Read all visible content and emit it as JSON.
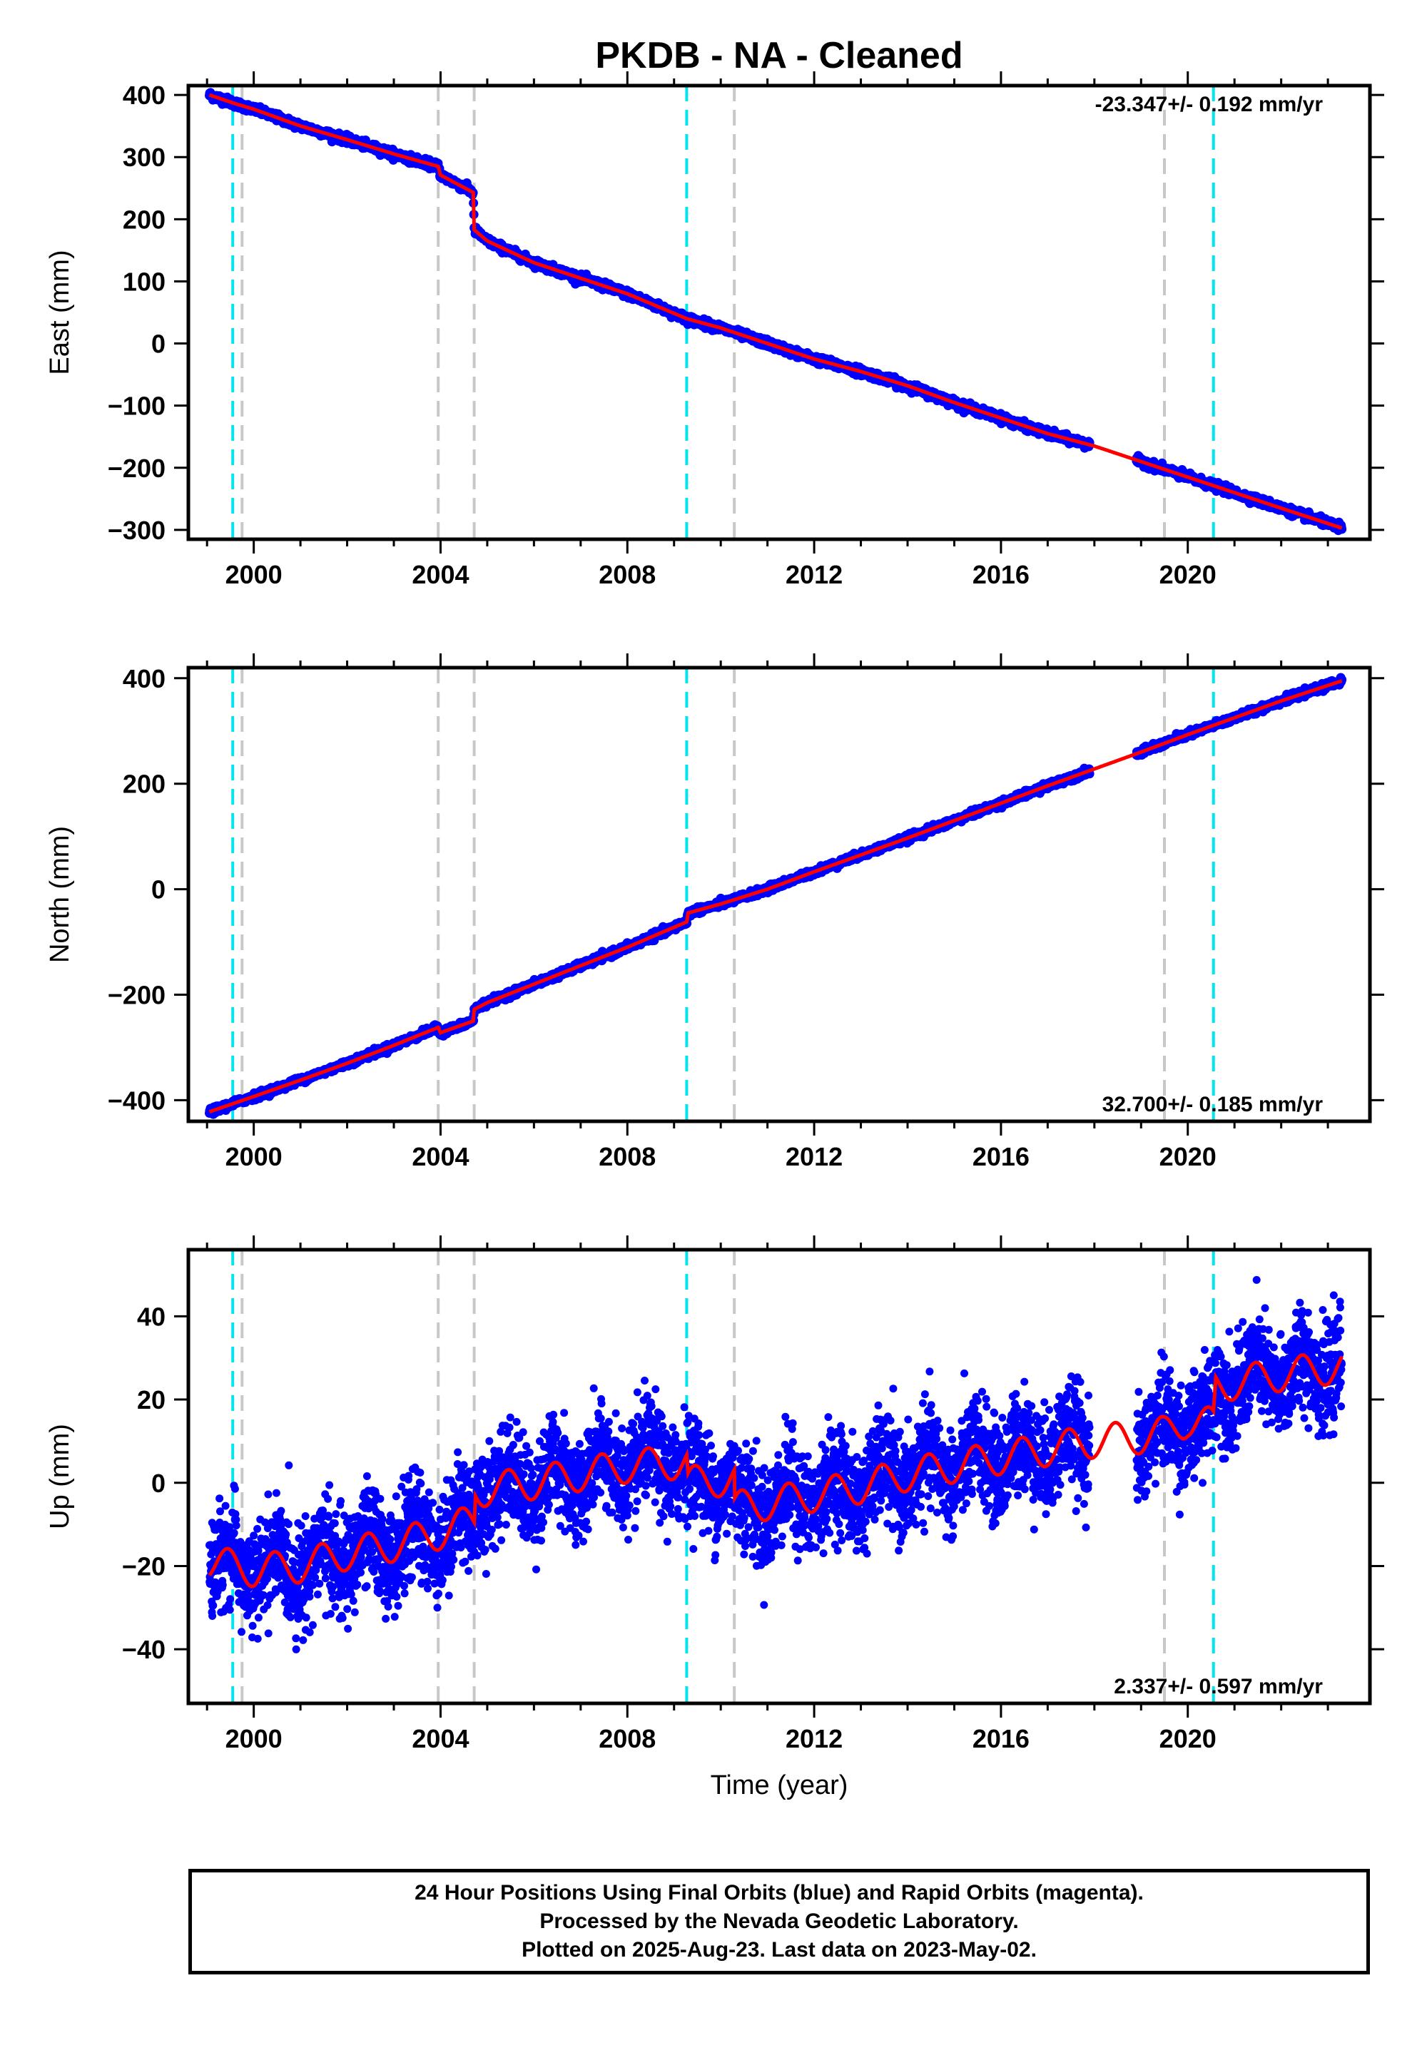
{
  "title": "PKDB  - NA - Cleaned",
  "xlabel": "Time (year)",
  "footer": {
    "line1": "24 Hour Positions Using Final Orbits (blue) and Rapid Orbits (magenta).",
    "line2": "Processed by the Nevada Geodetic Laboratory.",
    "line3": "Plotted on 2025-Aug-23. Last data on 2023-May-02."
  },
  "colors": {
    "data": "#0000ff",
    "model": "#ff0000",
    "equipment_change": "#c8c8c8",
    "earthquake": "#00e5ee"
  },
  "chart_data": [
    {
      "type": "scatter",
      "component": "east",
      "ylabel": "East (mm)",
      "rate_label": "-23.347+/- 0.192 mm/yr",
      "rate_position": "top-right",
      "xlim": [
        1998.6,
        2023.9
      ],
      "ylim": [
        -315,
        415
      ],
      "xticks": [
        2000,
        2004,
        2008,
        2012,
        2016,
        2020
      ],
      "yticks": [
        -300,
        -200,
        -100,
        0,
        100,
        200,
        300,
        400
      ],
      "trend_anchors": [
        [
          1999.05,
          400
        ],
        [
          1999.6,
          386
        ],
        [
          2000.0,
          377
        ],
        [
          2001.0,
          350
        ],
        [
          2002.0,
          328
        ],
        [
          2003.0,
          305
        ],
        [
          2003.95,
          285
        ],
        [
          2004.0,
          271
        ],
        [
          2004.7,
          243
        ],
        [
          2004.72,
          183
        ],
        [
          2005.0,
          165
        ],
        [
          2006.0,
          130
        ],
        [
          2007.0,
          105
        ],
        [
          2008.0,
          80
        ],
        [
          2009.27,
          40
        ],
        [
          2010.0,
          25
        ],
        [
          2011.0,
          0
        ],
        [
          2012.0,
          -25
        ],
        [
          2013.0,
          -45
        ],
        [
          2014.0,
          -68
        ],
        [
          2015.0,
          -95
        ],
        [
          2016.0,
          -120
        ],
        [
          2017.0,
          -145
        ],
        [
          2018.0,
          -165
        ],
        [
          2019.0,
          -190
        ],
        [
          2020.0,
          -215
        ],
        [
          2021.0,
          -240
        ],
        [
          2022.0,
          -265
        ],
        [
          2023.3,
          -297
        ]
      ],
      "noise_mm": 3,
      "gaps": [
        [
          2017.9,
          2018.9
        ]
      ]
    },
    {
      "type": "scatter",
      "component": "north",
      "ylabel": "North (mm)",
      "rate_label": "32.700+/- 0.185 mm/yr",
      "rate_position": "bottom-right",
      "xlim": [
        1998.6,
        2023.9
      ],
      "ylim": [
        -440,
        420
      ],
      "xticks": [
        2000,
        2004,
        2008,
        2012,
        2016,
        2020
      ],
      "yticks": [
        -400,
        -200,
        0,
        200,
        400
      ],
      "trend_anchors": [
        [
          1999.05,
          -422
        ],
        [
          2000.0,
          -393
        ],
        [
          2001.0,
          -362
        ],
        [
          2002.0,
          -330
        ],
        [
          2003.0,
          -296
        ],
        [
          2003.95,
          -262
        ],
        [
          2004.0,
          -272
        ],
        [
          2004.7,
          -250
        ],
        [
          2004.72,
          -228
        ],
        [
          2005.0,
          -215
        ],
        [
          2006.0,
          -180
        ],
        [
          2007.0,
          -145
        ],
        [
          2008.0,
          -110
        ],
        [
          2009.27,
          -62
        ],
        [
          2009.3,
          -45
        ],
        [
          2010.0,
          -28
        ],
        [
          2011.0,
          0
        ],
        [
          2012.0,
          33
        ],
        [
          2013.0,
          65
        ],
        [
          2014.0,
          97
        ],
        [
          2015.0,
          130
        ],
        [
          2016.0,
          163
        ],
        [
          2017.0,
          196
        ],
        [
          2018.0,
          228
        ],
        [
          2019.0,
          260
        ],
        [
          2020.0,
          293
        ],
        [
          2021.0,
          325
        ],
        [
          2022.0,
          357
        ],
        [
          2023.3,
          395
        ]
      ],
      "noise_mm": 3,
      "gaps": [
        [
          2017.9,
          2018.9
        ]
      ]
    },
    {
      "type": "scatter",
      "component": "up",
      "ylabel": "Up (mm)",
      "rate_label": "2.337+/- 0.597 mm/yr",
      "rate_position": "bottom-right",
      "xlim": [
        1998.6,
        2023.9
      ],
      "ylim": [
        -53,
        56
      ],
      "xticks": [
        2000,
        2004,
        2008,
        2012,
        2016,
        2020
      ],
      "yticks": [
        -40,
        -20,
        0,
        20,
        40
      ],
      "trend_anchors": [
        [
          1999.05,
          -19
        ],
        [
          2000.0,
          -21
        ],
        [
          2001.0,
          -20
        ],
        [
          2002.0,
          -17
        ],
        [
          2003.0,
          -15
        ],
        [
          2004.0,
          -12
        ],
        [
          2004.72,
          -9
        ],
        [
          2004.75,
          -2
        ],
        [
          2006.0,
          0
        ],
        [
          2007.0,
          2
        ],
        [
          2008.0,
          4
        ],
        [
          2009.27,
          5
        ],
        [
          2009.3,
          0
        ],
        [
          2010.29,
          1
        ],
        [
          2010.3,
          -6
        ],
        [
          2011.0,
          -5
        ],
        [
          2012.0,
          -3
        ],
        [
          2013.0,
          -1
        ],
        [
          2014.0,
          2
        ],
        [
          2015.0,
          4
        ],
        [
          2016.0,
          6
        ],
        [
          2017.0,
          8
        ],
        [
          2018.0,
          10
        ],
        [
          2019.0,
          11
        ],
        [
          2019.5,
          12
        ],
        [
          2020.0,
          15
        ],
        [
          2020.55,
          14
        ],
        [
          2020.6,
          23
        ],
        [
          2021.0,
          24
        ],
        [
          2022.0,
          26
        ],
        [
          2023.3,
          28
        ]
      ],
      "seasonal_amplitude_mm": 4,
      "noise_mm": 6,
      "gaps": [
        [
          2017.9,
          2018.9
        ]
      ]
    }
  ],
  "events": {
    "equipment_changes": [
      1999.75,
      2003.95,
      2004.72,
      2010.29,
      2019.5
    ],
    "earthquakes": [
      1999.55,
      2009.27,
      2020.55
    ]
  }
}
